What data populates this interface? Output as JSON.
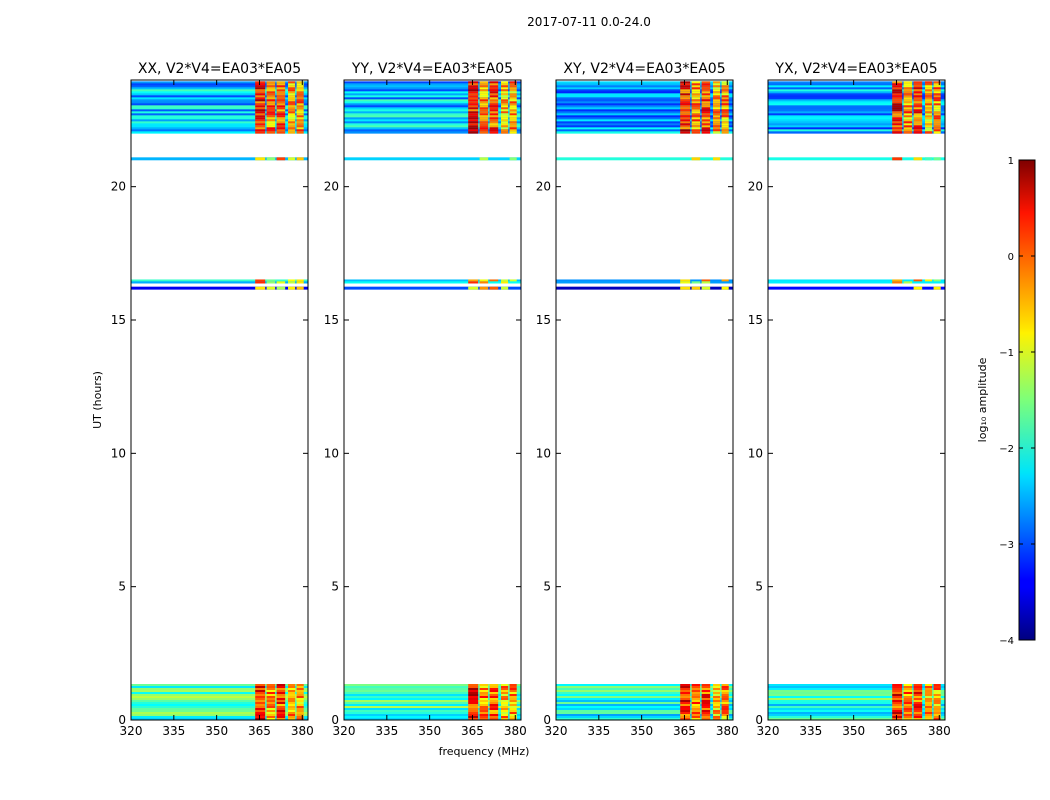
{
  "chart_data": {
    "type": "heatmap",
    "suptitle": "2017-07-11 0.0-24.0",
    "xlabel": "frequency (MHz)",
    "ylabel": "UT (hours)",
    "xlim": [
      320,
      382
    ],
    "ylim": [
      0,
      24
    ],
    "xticks": [
      320,
      335,
      350,
      365,
      380
    ],
    "yticks": [
      0,
      5,
      10,
      15,
      20
    ],
    "xtick_labels": [
      "320",
      "335",
      "350",
      "365",
      "380"
    ],
    "ytick_labels": [
      "0",
      "5",
      "10",
      "15",
      "20"
    ],
    "panels": [
      {
        "title": "XX, V2*V4=EA03*EA05"
      },
      {
        "title": "YY, V2*V4=EA03*EA05"
      },
      {
        "title": "XY, V2*V4=EA03*EA05"
      },
      {
        "title": "YX, V2*V4=EA03*EA05"
      }
    ],
    "data_time_bands": [
      {
        "from": 0.0,
        "to": 1.35,
        "level": -1.8
      },
      {
        "from": 16.15,
        "to": 16.25,
        "level": -3.2
      },
      {
        "from": 16.38,
        "to": 16.52,
        "level": -2.5
      },
      {
        "from": 21.0,
        "to": 21.1,
        "level": -2.3
      },
      {
        "from": 22.0,
        "to": 23.95,
        "level": -2.4
      }
    ],
    "rfi_bands_mhz": [
      {
        "from": 363.5,
        "to": 367.0,
        "level": 0.2
      },
      {
        "from": 367.5,
        "to": 370.5,
        "level": -0.3
      },
      {
        "from": 371.0,
        "to": 374.0,
        "level": 0.0
      },
      {
        "from": 375.0,
        "to": 377.5,
        "level": -0.5
      },
      {
        "from": 378.0,
        "to": 380.5,
        "level": -0.4
      }
    ],
    "colorbar": {
      "label": "log₁₀ amplitude",
      "range": [
        -4,
        1
      ],
      "ticks": [
        1,
        0,
        -1,
        -2,
        -3,
        -4
      ],
      "tick_labels": [
        "1",
        "0",
        "−1",
        "−2",
        "−3",
        "−4"
      ],
      "colormap": "jet"
    }
  }
}
